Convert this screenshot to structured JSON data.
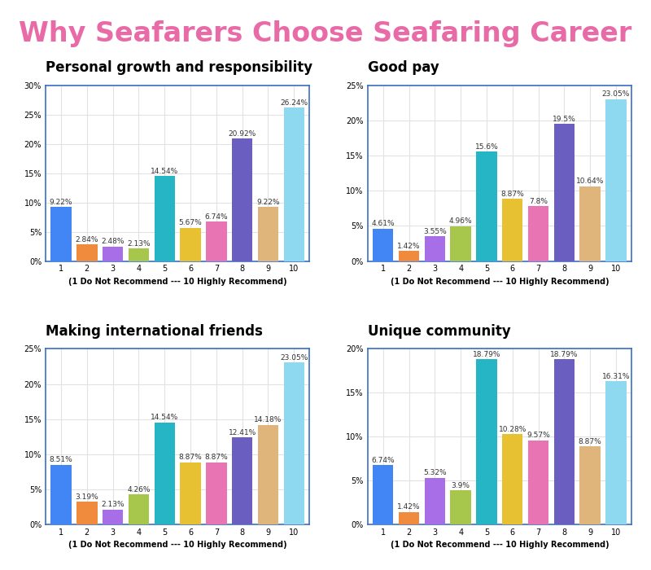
{
  "title": "Why Seafarers Choose Seafaring Career",
  "chart_data": [
    {
      "type": "bar",
      "title": "Personal growth and responsibility",
      "x_label": "(1 Do Not Recommend --- 10 Highly Recommend)",
      "categories": [
        "1",
        "2",
        "3",
        "4",
        "5",
        "6",
        "7",
        "8",
        "9",
        "10"
      ],
      "values": [
        9.22,
        2.84,
        2.48,
        2.13,
        14.54,
        5.67,
        6.74,
        20.92,
        9.22,
        26.24
      ],
      "value_labels": [
        "9.22%",
        "2.84%",
        "2.48%",
        "2.13%",
        "14.54%",
        "5.67%",
        "6.74%",
        "20.92%",
        "9.22%",
        "26.24%"
      ],
      "colors": [
        "#4285f4",
        "#f08a3c",
        "#a86ee8",
        "#a6c64c",
        "#26b5c5",
        "#e8c132",
        "#e874b4",
        "#6a5fc1",
        "#dfb57c",
        "#8ed8f0"
      ],
      "ylim": [
        0,
        30
      ],
      "yticks": [
        {
          "value": 0,
          "label": "0%"
        },
        {
          "value": 5,
          "label": "5%"
        },
        {
          "value": 10,
          "label": "10%"
        },
        {
          "value": 15,
          "label": "15%"
        },
        {
          "value": 20,
          "label": "20%"
        },
        {
          "value": 25,
          "label": "25%"
        },
        {
          "value": 30,
          "label": "30%"
        }
      ],
      "grid": true,
      "data_labels": true
    },
    {
      "type": "bar",
      "title": "Good pay",
      "x_label": "(1 Do Not Recommend --- 10 Highly Recommend)",
      "categories": [
        "1",
        "2",
        "3",
        "4",
        "5",
        "6",
        "7",
        "8",
        "9",
        "10"
      ],
      "values": [
        4.61,
        1.42,
        3.55,
        4.96,
        15.6,
        8.87,
        7.8,
        19.5,
        10.64,
        23.05
      ],
      "value_labels": [
        "4.61%",
        "1.42%",
        "3.55%",
        "4.96%",
        "15.6%",
        "8.87%",
        "7.8%",
        "19.5%",
        "10.64%",
        "23.05%"
      ],
      "colors": [
        "#4285f4",
        "#f08a3c",
        "#a86ee8",
        "#a6c64c",
        "#26b5c5",
        "#e8c132",
        "#e874b4",
        "#6a5fc1",
        "#dfb57c",
        "#8ed8f0"
      ],
      "ylim": [
        0,
        25
      ],
      "yticks": [
        {
          "value": 0,
          "label": "0%"
        },
        {
          "value": 5,
          "label": "5%"
        },
        {
          "value": 10,
          "label": "10%"
        },
        {
          "value": 15,
          "label": "15%"
        },
        {
          "value": 20,
          "label": "20%"
        },
        {
          "value": 25,
          "label": "25%"
        }
      ],
      "grid": true,
      "data_labels": true
    },
    {
      "type": "bar",
      "title": "Making international friends",
      "x_label": "(1 Do Not Recommend --- 10 Highly Recommend)",
      "categories": [
        "1",
        "2",
        "3",
        "4",
        "5",
        "6",
        "7",
        "8",
        "9",
        "10"
      ],
      "values": [
        8.51,
        3.19,
        2.13,
        4.26,
        14.54,
        8.87,
        8.87,
        12.41,
        14.18,
        23.05
      ],
      "value_labels": [
        "8.51%",
        "3.19%",
        "2.13%",
        "4.26%",
        "14.54%",
        "8.87%",
        "8.87%",
        "12.41%",
        "14.18%",
        "23.05%"
      ],
      "colors": [
        "#4285f4",
        "#f08a3c",
        "#a86ee8",
        "#a6c64c",
        "#26b5c5",
        "#e8c132",
        "#e874b4",
        "#6a5fc1",
        "#dfb57c",
        "#8ed8f0"
      ],
      "ylim": [
        0,
        25
      ],
      "yticks": [
        {
          "value": 0,
          "label": "0%"
        },
        {
          "value": 5,
          "label": "5%"
        },
        {
          "value": 10,
          "label": "10%"
        },
        {
          "value": 15,
          "label": "15%"
        },
        {
          "value": 20,
          "label": "20%"
        },
        {
          "value": 25,
          "label": "25%"
        }
      ],
      "grid": true,
      "data_labels": true
    },
    {
      "type": "bar",
      "title": "Unique community",
      "x_label": "(1 Do Not Recommend --- 10 Highly Recommend)",
      "categories": [
        "1",
        "2",
        "3",
        "4",
        "5",
        "6",
        "7",
        "8",
        "9",
        "10"
      ],
      "values": [
        6.74,
        1.42,
        5.32,
        3.9,
        18.79,
        10.28,
        9.57,
        18.79,
        8.87,
        16.31
      ],
      "value_labels": [
        "6.74%",
        "1.42%",
        "5.32%",
        "3.9%",
        "18.79%",
        "10.28%",
        "9.57%",
        "18.79%",
        "8.87%",
        "16.31%"
      ],
      "colors": [
        "#4285f4",
        "#f08a3c",
        "#a86ee8",
        "#a6c64c",
        "#26b5c5",
        "#e8c132",
        "#e874b4",
        "#6a5fc1",
        "#dfb57c",
        "#8ed8f0"
      ],
      "ylim": [
        0,
        20
      ],
      "yticks": [
        {
          "value": 0,
          "label": "0%"
        },
        {
          "value": 5,
          "label": "5%"
        },
        {
          "value": 10,
          "label": "10%"
        },
        {
          "value": 15,
          "label": "15%"
        },
        {
          "value": 20,
          "label": "20%"
        }
      ],
      "grid": true,
      "data_labels": true
    }
  ]
}
